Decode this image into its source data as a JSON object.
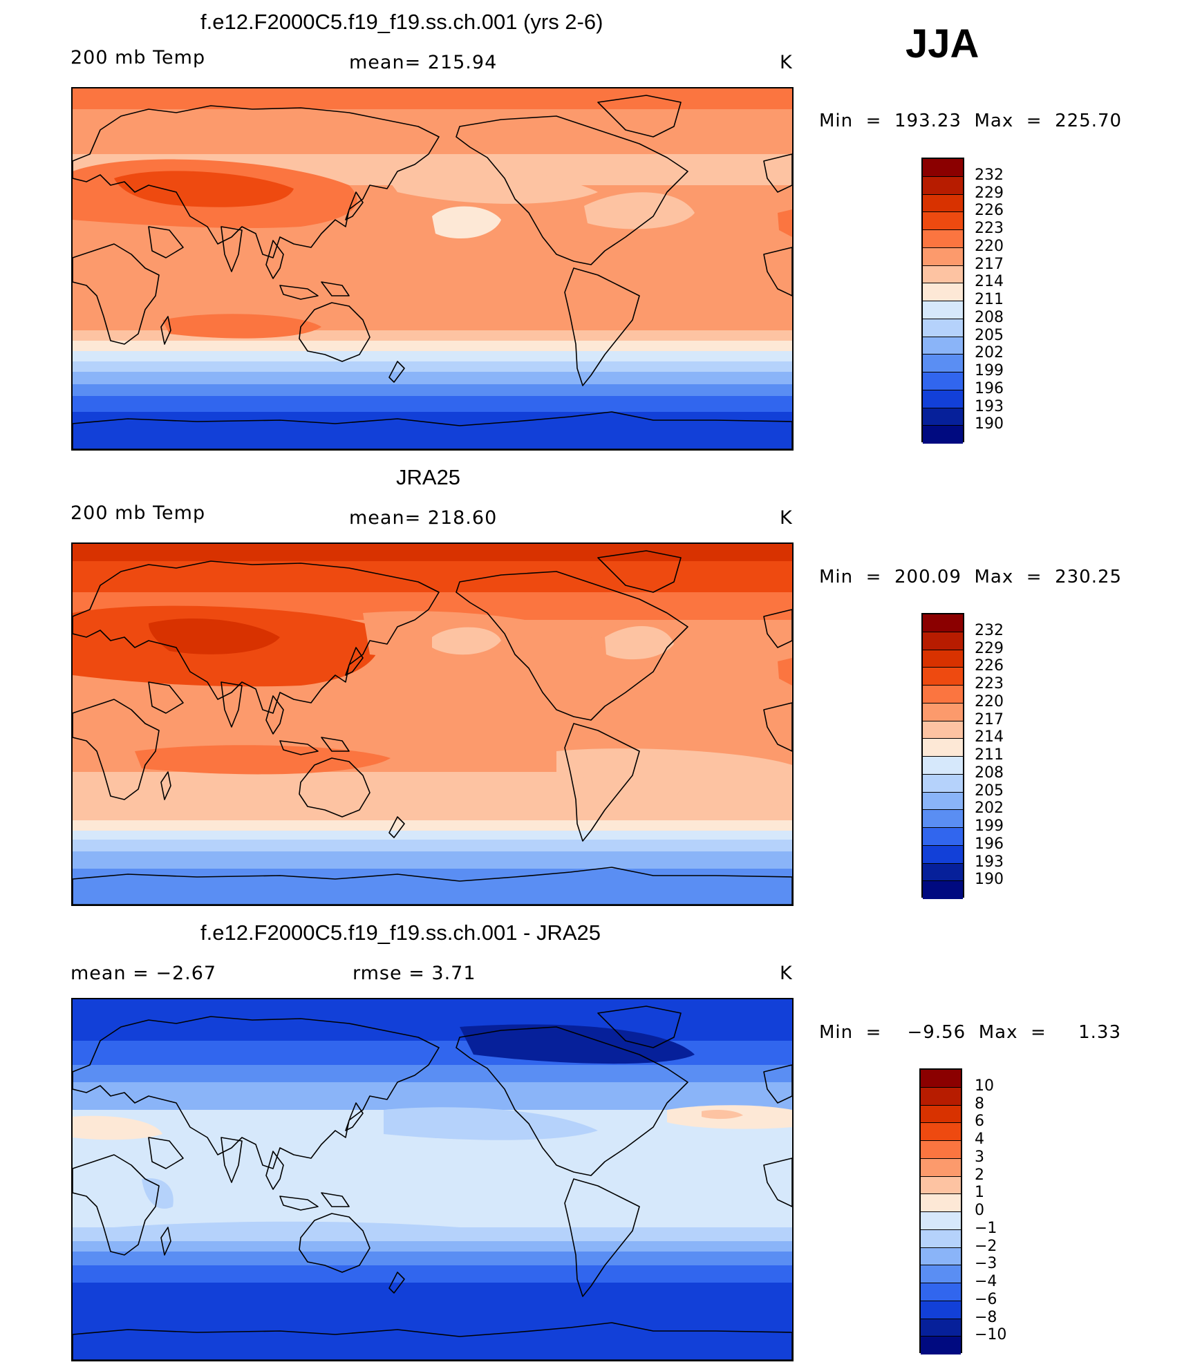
{
  "season": "JJA",
  "panels": [
    {
      "title": "f.e12.F2000C5.f19_f19.ss.ch.001 (yrs 2-6)",
      "left_label": "200 mb Temp",
      "center_label": "mean=  215.94",
      "units": "K",
      "minmax": "Min  =  193.23  Max  =  225.70",
      "colorbar": [
        "232",
        "229",
        "226",
        "223",
        "220",
        "217",
        "214",
        "211",
        "208",
        "205",
        "202",
        "199",
        "196",
        "193",
        "190"
      ],
      "colors": [
        "#8b0000",
        "#b71c00",
        "#d83200",
        "#ee4a10",
        "#fb7540",
        "#fc9a6c",
        "#fdc3a2",
        "#fde8d6",
        "#d6e8fb",
        "#b5d2fb",
        "#8ab4f8",
        "#5a8ef3",
        "#3166ee",
        "#1240d8",
        "#06209a",
        "#000a80"
      ]
    },
    {
      "title": "JRA25",
      "left_label": "200 mb Temp",
      "center_label": "mean=  218.60",
      "units": "K",
      "minmax": "Min  =  200.09  Max  =  230.25",
      "colorbar": [
        "232",
        "229",
        "226",
        "223",
        "220",
        "217",
        "214",
        "211",
        "208",
        "205",
        "202",
        "199",
        "196",
        "193",
        "190"
      ],
      "colors": [
        "#8b0000",
        "#b71c00",
        "#d83200",
        "#ee4a10",
        "#fb7540",
        "#fc9a6c",
        "#fdc3a2",
        "#fde8d6",
        "#d6e8fb",
        "#b5d2fb",
        "#8ab4f8",
        "#5a8ef3",
        "#3166ee",
        "#1240d8",
        "#06209a",
        "#000a80"
      ]
    },
    {
      "title": "f.e12.F2000C5.f19_f19.ss.ch.001 - JRA25",
      "left_label": "mean =    −2.67",
      "center_label": "rmse =     3.71",
      "units": "K",
      "minmax": "Min  =    −9.56  Max  =     1.33",
      "colorbar": [
        "10",
        "8",
        "6",
        "4",
        "3",
        "2",
        "1",
        "0",
        "−1",
        "−2",
        "−3",
        "−4",
        "−6",
        "−8",
        "−10"
      ],
      "colors": [
        "#8b0000",
        "#b71c00",
        "#d83200",
        "#ee4a10",
        "#fb7540",
        "#fc9a6c",
        "#fdc3a2",
        "#fde8d6",
        "#d6e8fb",
        "#b5d2fb",
        "#8ab4f8",
        "#5a8ef3",
        "#3166ee",
        "#1240d8",
        "#06209a",
        "#000a80"
      ]
    }
  ]
}
